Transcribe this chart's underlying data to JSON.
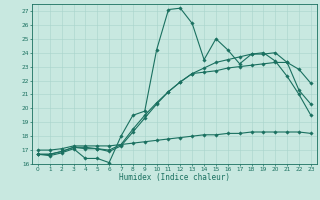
{
  "xlabel": "Humidex (Indice chaleur)",
  "background_color": "#c8e8e0",
  "line_color": "#1a7060",
  "grid_color": "#a8d4cc",
  "ylim": [
    16,
    27.5
  ],
  "xlim": [
    -0.5,
    23.5
  ],
  "yticks": [
    16,
    17,
    18,
    19,
    20,
    21,
    22,
    23,
    24,
    25,
    26,
    27
  ],
  "xticks": [
    0,
    1,
    2,
    3,
    4,
    5,
    6,
    7,
    8,
    9,
    10,
    11,
    12,
    13,
    14,
    15,
    16,
    17,
    18,
    19,
    20,
    21,
    22,
    23
  ],
  "lines": [
    {
      "x": [
        0,
        1,
        2,
        3,
        4,
        5,
        6,
        7,
        8,
        9,
        10,
        11,
        12,
        13,
        14,
        15,
        16,
        17,
        18,
        19,
        20,
        21,
        22,
        23
      ],
      "y": [
        16.7,
        16.6,
        16.8,
        17.1,
        16.4,
        16.4,
        16.1,
        18.0,
        19.5,
        19.8,
        24.2,
        27.1,
        27.2,
        26.1,
        23.5,
        25.0,
        24.2,
        23.2,
        23.9,
        23.9,
        24.0,
        23.3,
        21.3,
        20.3
      ]
    },
    {
      "x": [
        0,
        1,
        2,
        3,
        4,
        5,
        6,
        7,
        8,
        9,
        10,
        11,
        12,
        13,
        14,
        15,
        16,
        17,
        18,
        19,
        20,
        21,
        22,
        23
      ],
      "y": [
        16.7,
        16.7,
        16.9,
        17.2,
        17.2,
        17.1,
        17.0,
        17.4,
        18.5,
        19.5,
        20.4,
        21.2,
        21.9,
        22.5,
        22.9,
        23.3,
        23.5,
        23.7,
        23.9,
        24.0,
        23.4,
        22.3,
        21.0,
        19.5
      ]
    },
    {
      "x": [
        0,
        1,
        2,
        3,
        4,
        5,
        6,
        7,
        8,
        9,
        10,
        11,
        12,
        13,
        14,
        15,
        16,
        17,
        18,
        19,
        20,
        21,
        22,
        23
      ],
      "y": [
        16.7,
        16.7,
        16.9,
        17.2,
        17.1,
        17.1,
        16.9,
        17.3,
        18.3,
        19.3,
        20.3,
        21.2,
        21.9,
        22.5,
        22.6,
        22.7,
        22.9,
        23.0,
        23.1,
        23.2,
        23.3,
        23.3,
        22.8,
        21.8
      ]
    },
    {
      "x": [
        0,
        1,
        2,
        3,
        4,
        5,
        6,
        7,
        8,
        9,
        10,
        11,
        12,
        13,
        14,
        15,
        16,
        17,
        18,
        19,
        20,
        21,
        22,
        23
      ],
      "y": [
        17.0,
        17.0,
        17.1,
        17.3,
        17.3,
        17.3,
        17.3,
        17.4,
        17.5,
        17.6,
        17.7,
        17.8,
        17.9,
        18.0,
        18.1,
        18.1,
        18.2,
        18.2,
        18.3,
        18.3,
        18.3,
        18.3,
        18.3,
        18.2
      ]
    }
  ]
}
